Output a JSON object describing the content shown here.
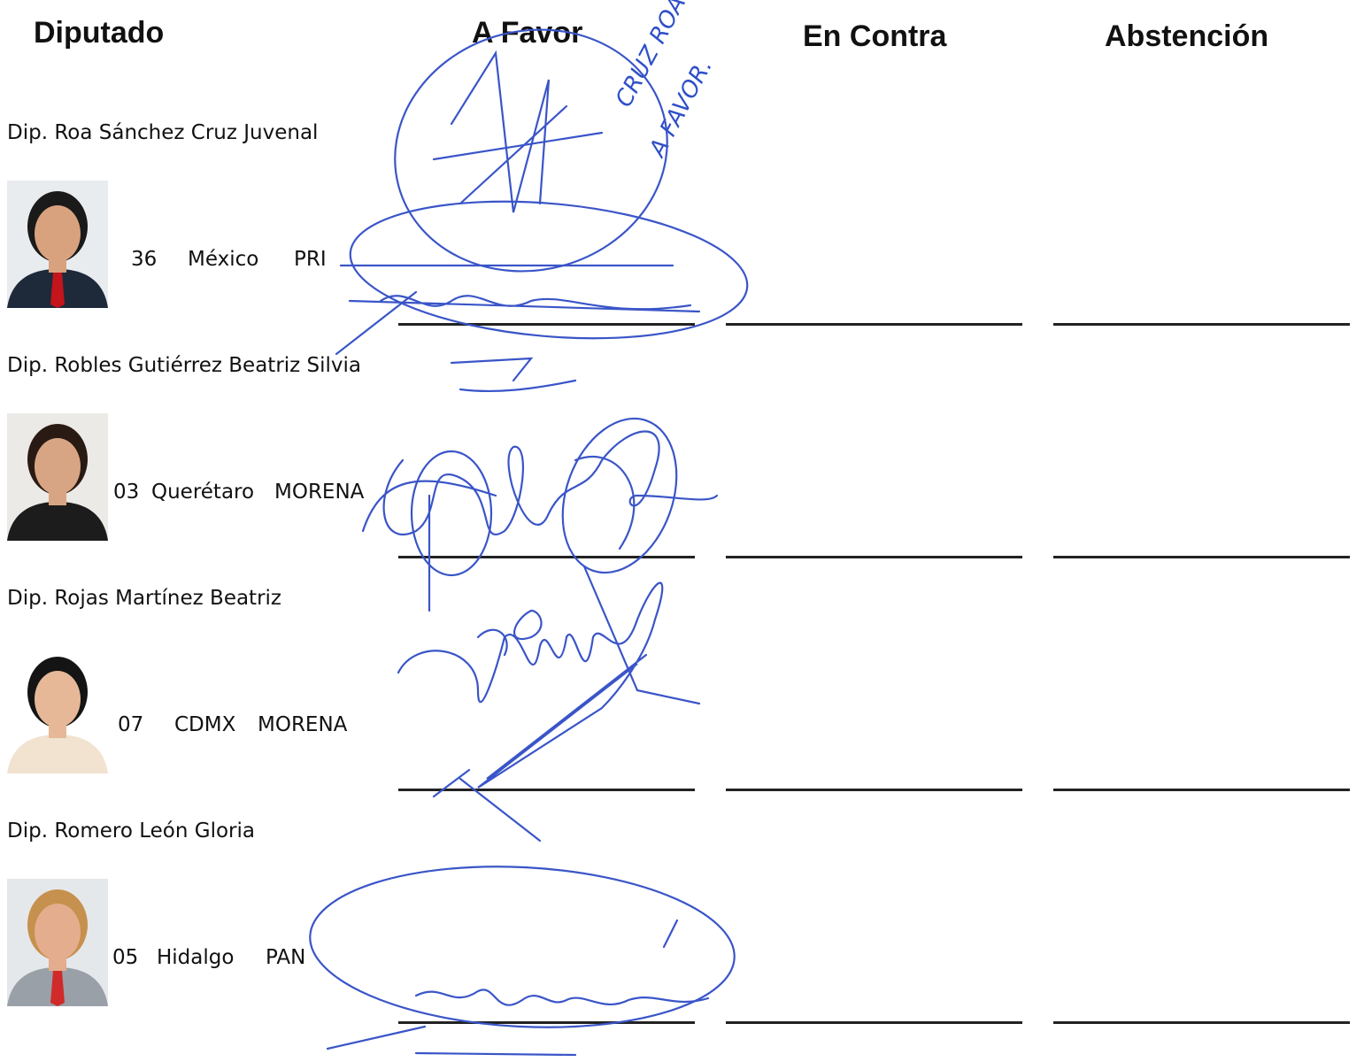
{
  "header": {
    "columns": [
      "Diputado",
      "A Favor",
      "En Contra",
      "Abstención"
    ]
  },
  "rows": [
    {
      "name": "Dip. Roa Sánchez Cruz Juvenal",
      "district": "36",
      "state": "México",
      "party": "PRI"
    },
    {
      "name": "Dip. Robles Gutiérrez Beatriz Silvia",
      "district": "03",
      "state": "Querétaro",
      "party": "MORENA"
    },
    {
      "name": "Dip. Rojas Martínez Beatriz",
      "district": "07",
      "state": "CDMX",
      "party": "MORENA"
    },
    {
      "name": "Dip. Romero León Gloria",
      "district": "05",
      "state": "Hidalgo",
      "party": "PAN"
    }
  ],
  "annotation": [
    "CRUZ ROA",
    "A FAVOR."
  ]
}
